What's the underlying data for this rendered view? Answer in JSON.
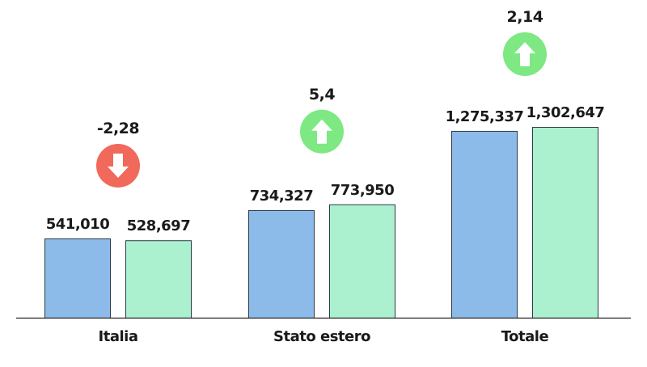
{
  "chart_data": {
    "type": "bar",
    "categories": [
      "Italia",
      "Stato estero",
      "Totale"
    ],
    "series": [
      {
        "values": [
          541010,
          734327,
          1275337
        ],
        "labels": [
          "541,010",
          "734,327",
          "1,275,337"
        ],
        "color": "#8cbbea"
      },
      {
        "values": [
          528697,
          773950,
          1302647
        ],
        "labels": [
          "528,697",
          "773,950",
          "1,302,647"
        ],
        "color": "#abf0cf"
      }
    ],
    "changes": [
      {
        "value": -2.28,
        "label": "-2,28",
        "direction": "down",
        "color": "#f0695a",
        "icon": "arrow-down-icon"
      },
      {
        "value": 5.4,
        "label": "5,4",
        "direction": "up",
        "color": "#7ee883",
        "icon": "arrow-up-icon"
      },
      {
        "value": 2.14,
        "label": "2,14",
        "direction": "up",
        "color": "#7ee883",
        "icon": "arrow-up-icon"
      }
    ],
    "ylim": [
      0,
      1302647
    ],
    "grid": false,
    "legend": "none",
    "bar_stroke_color": "#2f3a44",
    "axis_color": "#222222"
  }
}
